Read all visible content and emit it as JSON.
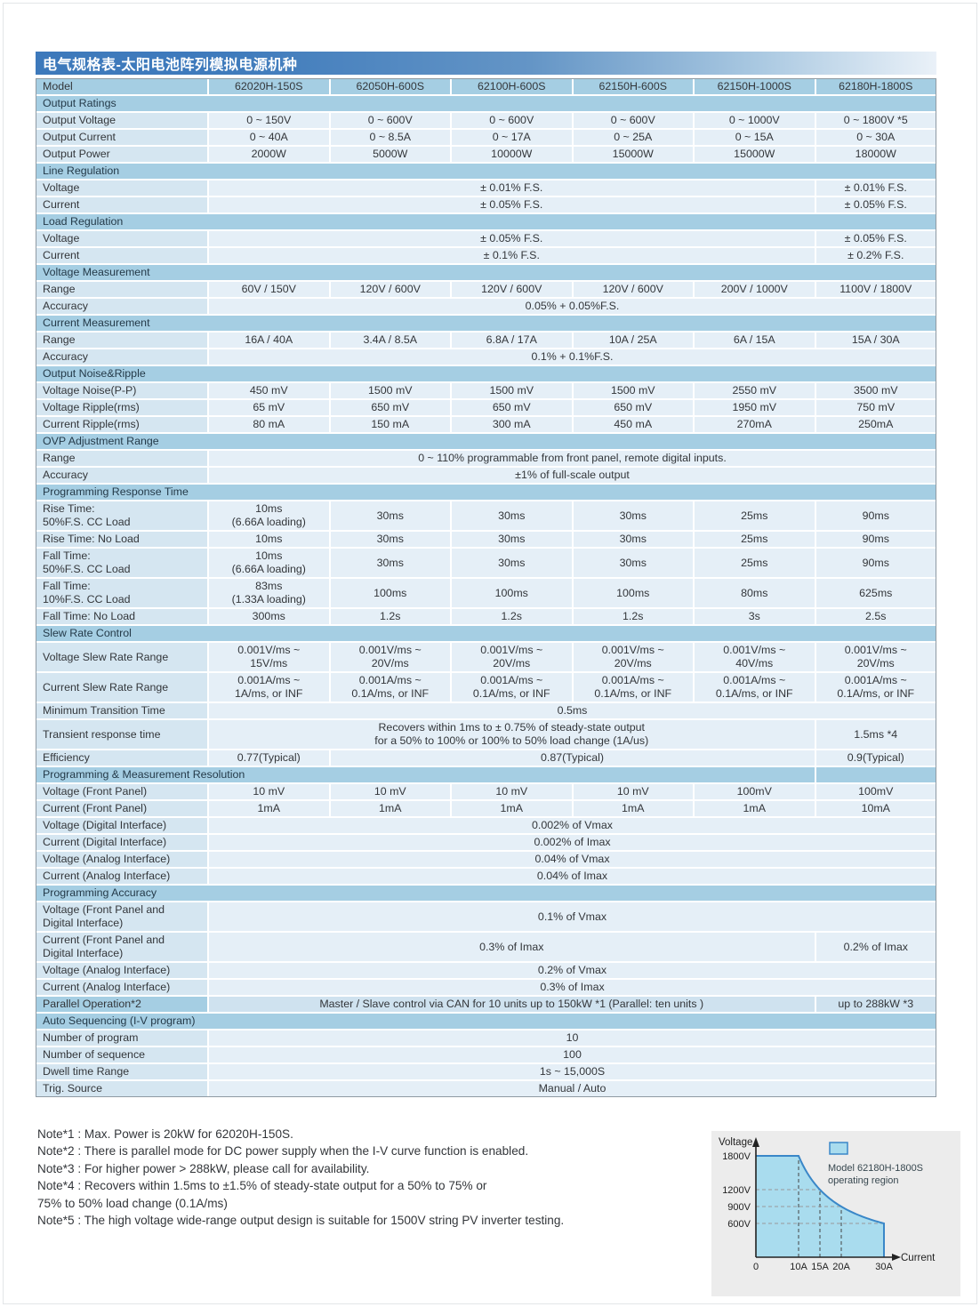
{
  "page": {
    "title": "电气规格表-太阳电池阵列模拟电源机种"
  },
  "colors": {
    "title_gradient_start": "#3d79bb",
    "title_gradient_end": "#eaf1f8",
    "section_bg": "#a5cee3",
    "label_bg": "#d5e6f1",
    "value_bg": "#e5eff7",
    "table_border": "#8f9aa3",
    "chart_panel_bg": "#ececec",
    "region_fill": "#a9dcee",
    "region_stroke": "#3a87c8",
    "axis_color": "#222222",
    "dash_vertical": "#444444",
    "dash_horizontal": "#999999",
    "legend_text": "#37474f"
  },
  "table": {
    "columns": [
      "62020H-150S",
      "62050H-600S",
      "62100H-600S",
      "62150H-600S",
      "62150H-1000S",
      "62180H-1800S"
    ],
    "rows": [
      {
        "type": "model",
        "label": "Model"
      },
      {
        "type": "section",
        "label": "Output Ratings"
      },
      {
        "type": "data",
        "label": "Output Voltage",
        "cells": [
          {
            "t": "0 ~ 150V"
          },
          {
            "t": "0 ~ 600V"
          },
          {
            "t": "0 ~ 600V"
          },
          {
            "t": "0 ~ 600V"
          },
          {
            "t": "0 ~ 1000V"
          },
          {
            "t": "0 ~ 1800V *5"
          }
        ]
      },
      {
        "type": "data",
        "label": "Output Current",
        "cells": [
          {
            "t": "0 ~ 40A"
          },
          {
            "t": "0 ~ 8.5A"
          },
          {
            "t": "0 ~ 17A"
          },
          {
            "t": "0 ~ 25A"
          },
          {
            "t": "0 ~ 15A"
          },
          {
            "t": "0 ~ 30A"
          }
        ]
      },
      {
        "type": "data",
        "label": "Output Power",
        "cells": [
          {
            "t": "2000W"
          },
          {
            "t": "5000W"
          },
          {
            "t": "10000W"
          },
          {
            "t": "15000W"
          },
          {
            "t": "15000W"
          },
          {
            "t": "18000W"
          }
        ]
      },
      {
        "type": "section",
        "label": "Line Regulation"
      },
      {
        "type": "data",
        "label": "Voltage",
        "cells": [
          {
            "t": "± 0.01% F.S.",
            "span": 5
          },
          {
            "t": "± 0.01% F.S."
          }
        ]
      },
      {
        "type": "data",
        "label": "Current",
        "cells": [
          {
            "t": "± 0.05% F.S.",
            "span": 5
          },
          {
            "t": "± 0.05% F.S."
          }
        ]
      },
      {
        "type": "section",
        "label": "Load Regulation"
      },
      {
        "type": "data",
        "label": "Voltage",
        "cells": [
          {
            "t": "± 0.05% F.S.",
            "span": 5
          },
          {
            "t": "± 0.05% F.S."
          }
        ]
      },
      {
        "type": "data",
        "label": "Current",
        "cells": [
          {
            "t": "± 0.1% F.S.",
            "span": 5
          },
          {
            "t": "± 0.2% F.S."
          }
        ]
      },
      {
        "type": "section",
        "label": "Voltage Measurement"
      },
      {
        "type": "data",
        "label": "Range",
        "cells": [
          {
            "t": "60V / 150V"
          },
          {
            "t": "120V / 600V"
          },
          {
            "t": "120V / 600V"
          },
          {
            "t": "120V / 600V"
          },
          {
            "t": "200V / 1000V"
          },
          {
            "t": "1100V / 1800V"
          }
        ]
      },
      {
        "type": "data",
        "label": "Accuracy",
        "cells": [
          {
            "t": "0.05% + 0.05%F.S.",
            "span": 6
          }
        ]
      },
      {
        "type": "section",
        "label": "Current Measurement"
      },
      {
        "type": "data",
        "label": "Range",
        "cells": [
          {
            "t": "16A / 40A"
          },
          {
            "t": "3.4A / 8.5A"
          },
          {
            "t": "6.8A / 17A"
          },
          {
            "t": "10A / 25A"
          },
          {
            "t": "6A / 15A"
          },
          {
            "t": "15A / 30A"
          }
        ]
      },
      {
        "type": "data",
        "label": "Accuracy",
        "cells": [
          {
            "t": "0.1% + 0.1%F.S.",
            "span": 6
          }
        ]
      },
      {
        "type": "section",
        "label": "Output Noise&Ripple"
      },
      {
        "type": "data",
        "label": "Voltage Noise(P-P)",
        "cells": [
          {
            "t": "450 mV"
          },
          {
            "t": "1500 mV"
          },
          {
            "t": "1500 mV"
          },
          {
            "t": "1500 mV"
          },
          {
            "t": "2550 mV"
          },
          {
            "t": "3500 mV"
          }
        ]
      },
      {
        "type": "data",
        "label": "Voltage Ripple(rms)",
        "cells": [
          {
            "t": "65 mV"
          },
          {
            "t": "650 mV"
          },
          {
            "t": "650 mV"
          },
          {
            "t": "650 mV"
          },
          {
            "t": "1950 mV"
          },
          {
            "t": "750 mV"
          }
        ]
      },
      {
        "type": "data",
        "label": "Current Ripple(rms)",
        "cells": [
          {
            "t": "80 mA"
          },
          {
            "t": "150 mA"
          },
          {
            "t": "300 mA"
          },
          {
            "t": "450 mA"
          },
          {
            "t": "270mA"
          },
          {
            "t": "250mA"
          }
        ]
      },
      {
        "type": "section",
        "label": "OVP Adjustment Range"
      },
      {
        "type": "data",
        "label": "Range",
        "cells": [
          {
            "t": "0 ~ 110% programmable from front panel, remote digital inputs.",
            "span": 6
          }
        ]
      },
      {
        "type": "data",
        "label": "Accuracy",
        "cells": [
          {
            "t": "±1% of full-scale output",
            "span": 6
          }
        ]
      },
      {
        "type": "section",
        "label": "Programming Response Time"
      },
      {
        "type": "data",
        "label": [
          "Rise Time:",
          "50%F.S. CC Load"
        ],
        "cells": [
          {
            "t": [
              "10ms",
              "(6.66A loading)"
            ]
          },
          {
            "t": "30ms"
          },
          {
            "t": "30ms"
          },
          {
            "t": "30ms"
          },
          {
            "t": "25ms"
          },
          {
            "t": "90ms"
          }
        ]
      },
      {
        "type": "data",
        "label": "Rise Time: No Load",
        "cells": [
          {
            "t": "10ms"
          },
          {
            "t": "30ms"
          },
          {
            "t": "30ms"
          },
          {
            "t": "30ms"
          },
          {
            "t": "25ms"
          },
          {
            "t": "90ms"
          }
        ]
      },
      {
        "type": "data",
        "label": [
          "Fall Time:",
          "50%F.S. CC Load"
        ],
        "cells": [
          {
            "t": [
              "10ms",
              "(6.66A loading)"
            ]
          },
          {
            "t": "30ms"
          },
          {
            "t": "30ms"
          },
          {
            "t": "30ms"
          },
          {
            "t": "25ms"
          },
          {
            "t": "90ms"
          }
        ]
      },
      {
        "type": "data",
        "label": [
          "Fall Time:",
          "10%F.S. CC Load"
        ],
        "cells": [
          {
            "t": [
              "83ms",
              "(1.33A loading)"
            ]
          },
          {
            "t": "100ms"
          },
          {
            "t": "100ms"
          },
          {
            "t": "100ms"
          },
          {
            "t": "80ms"
          },
          {
            "t": "625ms"
          }
        ]
      },
      {
        "type": "data",
        "label": "Fall Time: No Load",
        "cells": [
          {
            "t": "300ms"
          },
          {
            "t": "1.2s"
          },
          {
            "t": "1.2s"
          },
          {
            "t": "1.2s"
          },
          {
            "t": "3s"
          },
          {
            "t": "2.5s"
          }
        ]
      },
      {
        "type": "section",
        "label": "Slew Rate Control"
      },
      {
        "type": "data",
        "label": "Voltage Slew Rate Range",
        "cells": [
          {
            "t": [
              "0.001V/ms ~",
              "15V/ms"
            ]
          },
          {
            "t": [
              "0.001V/ms ~",
              "20V/ms"
            ]
          },
          {
            "t": [
              "0.001V/ms ~",
              "20V/ms"
            ]
          },
          {
            "t": [
              "0.001V/ms ~",
              "20V/ms"
            ]
          },
          {
            "t": [
              "0.001V/ms ~",
              "40V/ms"
            ]
          },
          {
            "t": [
              "0.001V/ms ~",
              "20V/ms"
            ]
          }
        ]
      },
      {
        "type": "data",
        "label": "Current Slew Rate Range",
        "cells": [
          {
            "t": [
              "0.001A/ms ~",
              "1A/ms, or INF"
            ]
          },
          {
            "t": [
              "0.001A/ms ~",
              "0.1A/ms, or INF"
            ]
          },
          {
            "t": [
              "0.001A/ms ~",
              "0.1A/ms, or INF"
            ]
          },
          {
            "t": [
              "0.001A/ms ~",
              "0.1A/ms, or INF"
            ]
          },
          {
            "t": [
              "0.001A/ms ~",
              "0.1A/ms, or INF"
            ]
          },
          {
            "t": [
              "0.001A/ms ~",
              "0.1A/ms, or INF"
            ]
          }
        ]
      },
      {
        "type": "data",
        "label": "Minimum Transition Time",
        "cells": [
          {
            "t": "0.5ms",
            "span": 6
          }
        ]
      },
      {
        "type": "data",
        "label": "Transient response time",
        "cells": [
          {
            "t": [
              "Recovers within 1ms to ± 0.75% of steady-state output",
              "for a 50% to 100% or 100% to 50% load change (1A/us)"
            ],
            "span": 5
          },
          {
            "t": "1.5ms *4"
          }
        ]
      },
      {
        "type": "data",
        "label": "Efficiency",
        "cells": [
          {
            "t": "0.77(Typical)"
          },
          {
            "t": "0.87(Typical)",
            "span": 4
          },
          {
            "t": "0.9(Typical)"
          }
        ]
      },
      {
        "type": "section",
        "label": "Programming & Measurement Resolution",
        "split_last": true
      },
      {
        "type": "data",
        "label": "Voltage (Front Panel)",
        "cells": [
          {
            "t": "10 mV"
          },
          {
            "t": "10 mV"
          },
          {
            "t": "10 mV"
          },
          {
            "t": "10 mV"
          },
          {
            "t": "100mV"
          },
          {
            "t": "100mV"
          }
        ]
      },
      {
        "type": "data",
        "label": "Current (Front Panel)",
        "cells": [
          {
            "t": "1mA"
          },
          {
            "t": "1mA"
          },
          {
            "t": "1mA"
          },
          {
            "t": "1mA"
          },
          {
            "t": "1mA"
          },
          {
            "t": "10mA"
          }
        ]
      },
      {
        "type": "data",
        "label": "Voltage (Digital Interface)",
        "cells": [
          {
            "t": "0.002% of Vmax",
            "span": 6
          }
        ]
      },
      {
        "type": "data",
        "label": "Current (Digital Interface)",
        "cells": [
          {
            "t": "0.002% of Imax",
            "span": 6
          }
        ]
      },
      {
        "type": "data",
        "label": "Voltage (Analog Interface)",
        "cells": [
          {
            "t": "0.04% of Vmax",
            "span": 6
          }
        ]
      },
      {
        "type": "data",
        "label": "Current (Analog Interface)",
        "cells": [
          {
            "t": "0.04% of Imax",
            "span": 6
          }
        ]
      },
      {
        "type": "section",
        "label": "Programming Accuracy"
      },
      {
        "type": "data",
        "label": [
          "Voltage (Front Panel and",
          "Digital Interface)"
        ],
        "cells": [
          {
            "t": "0.1% of Vmax",
            "span": 6
          }
        ]
      },
      {
        "type": "data",
        "label": [
          "Current (Front Panel and",
          "Digital Interface)"
        ],
        "cells": [
          {
            "t": "0.3% of Imax",
            "span": 5
          },
          {
            "t": "0.2% of Imax"
          }
        ]
      },
      {
        "type": "data",
        "label": "Voltage (Analog Interface)",
        "cells": [
          {
            "t": "0.2% of Vmax",
            "span": 6
          }
        ]
      },
      {
        "type": "data",
        "label": "Current (Analog Interface)",
        "cells": [
          {
            "t": "0.3% of Imax",
            "span": 6
          }
        ]
      },
      {
        "type": "data",
        "label": "Parallel Operation*2",
        "label_shade": "mid",
        "cells": [
          {
            "t": "Master / Slave control via CAN for 10 units up to 150kW *1  (Parallel: ten units )",
            "span": 5,
            "shade": "label"
          },
          {
            "t": "up to 288kW *3",
            "shade": "label"
          }
        ]
      },
      {
        "type": "section",
        "label": "Auto Sequencing (I-V program)"
      },
      {
        "type": "data",
        "label": "Number of program",
        "cells": [
          {
            "t": "10",
            "span": 6
          }
        ]
      },
      {
        "type": "data",
        "label": "Number of sequence",
        "cells": [
          {
            "t": "100",
            "span": 6
          }
        ]
      },
      {
        "type": "data",
        "label": "Dwell time Range",
        "cells": [
          {
            "t": "1s ~ 15,000S",
            "span": 6
          }
        ]
      },
      {
        "type": "data",
        "label": "Trig. Source",
        "cells": [
          {
            "t": "Manual / Auto",
            "span": 6
          }
        ]
      }
    ]
  },
  "notes": [
    "Note*1 : Max. Power is 20kW for 62020H-150S.",
    "Note*2 : There is parallel mode for DC power supply when the I-V curve function is enabled.",
    "Note*3 : For higher power > 288kW, please call for availability.",
    "Note*4 : Recovers within 1.5ms to ±1.5% of steady-state output for a 50% to 75% or",
    "75% to 50% load change (0.1A/ms)",
    "Note*5 : The high voltage wide-range output design is suitable for 1500V string PV inverter testing."
  ],
  "chart_data": {
    "type": "area",
    "title": "",
    "xlabel": "Current",
    "ylabel": "Voltage",
    "legend_lines": [
      "Model 62180H-1800S",
      "operating region"
    ],
    "x_ticks": [
      {
        "v": 0,
        "label": "0"
      },
      {
        "v": 10,
        "label": "10A"
      },
      {
        "v": 15,
        "label": "15A"
      },
      {
        "v": 20,
        "label": "20A"
      },
      {
        "v": 30,
        "label": "30A"
      }
    ],
    "y_ticks": [
      {
        "v": 1800,
        "label": "1800V"
      },
      {
        "v": 1200,
        "label": "1200V"
      },
      {
        "v": 900,
        "label": "900V"
      },
      {
        "v": 600,
        "label": "600V"
      }
    ],
    "xlim": [
      0,
      33
    ],
    "ylim": [
      0,
      1900
    ],
    "region": {
      "cv_limit_v": 1800,
      "cp_limit_w": 18000,
      "i_knee_a": 10,
      "i_max_a": 30
    },
    "curve_points": [
      [
        0,
        1800
      ],
      [
        10,
        1800
      ],
      [
        15,
        1200
      ],
      [
        20,
        900
      ],
      [
        30,
        600
      ]
    ],
    "dashed_vertical_a": [
      10,
      15,
      20
    ],
    "dashed_horizontal_v": [
      1200,
      900,
      600
    ],
    "grid": "dashed-guides",
    "legend_position": "top-right"
  }
}
